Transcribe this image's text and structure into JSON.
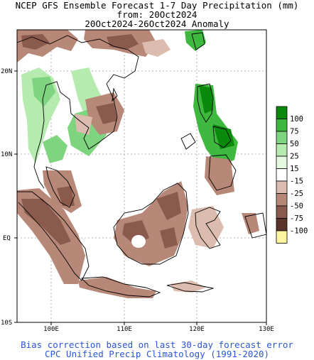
{
  "titles": {
    "line1": "NCEP GFS Ensemble Forecast 1-7 Day Precipitation (mm)",
    "line2": "from: 20Oct2024",
    "line3": "20Oct2024-26Oct2024 Anomaly"
  },
  "axes": {
    "lat_ticks": [
      "20N",
      "10N",
      "EQ",
      "10S"
    ],
    "lon_ticks": [
      "100E",
      "110E",
      "120E",
      "130E"
    ]
  },
  "legend": {
    "values": [
      "100",
      "75",
      "50",
      "25",
      "15",
      "-15",
      "-25",
      "-50",
      "-75",
      "-100"
    ],
    "colors": [
      "#0a8a0a",
      "#3fb83f",
      "#7fd47f",
      "#b6ebb0",
      "#e5f9e0",
      "#ffffff",
      "#ddbcb0",
      "#b78878",
      "#8a5a4c",
      "#5a3428",
      "#fff5a0"
    ]
  },
  "footer": {
    "line1": "Bias correction based on last 30-day forecast error",
    "line2": "CPC Unified Precip Climatology (1991-2020)"
  }
}
